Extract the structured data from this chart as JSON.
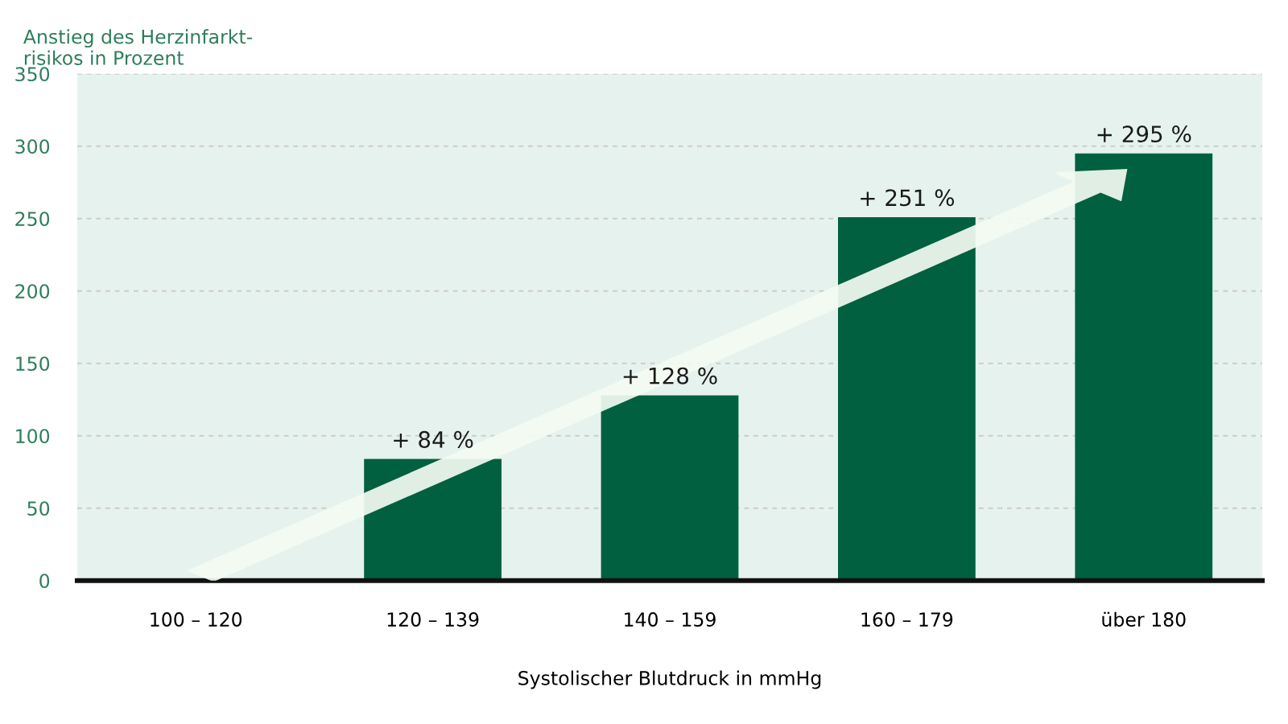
{
  "chart_data": {
    "type": "bar",
    "ylabel": "Anstieg des Herzinfarkt-\nrisikos in Prozent",
    "xlabel": "Systolischer Blutdruck in mmHg",
    "categories": [
      "100 – 120",
      "120 – 139",
      "140 – 159",
      "160 – 179",
      "über 180"
    ],
    "values": [
      null,
      84,
      128,
      251,
      295
    ],
    "value_labels": [
      null,
      "+ 84 %",
      "+ 128 %",
      "+ 251 %",
      "+ 295 %"
    ],
    "color": "#006040",
    "ylim": [
      0,
      350
    ],
    "yticks": [
      0,
      50,
      100,
      150,
      200,
      250,
      300,
      350
    ],
    "grid": "y"
  }
}
